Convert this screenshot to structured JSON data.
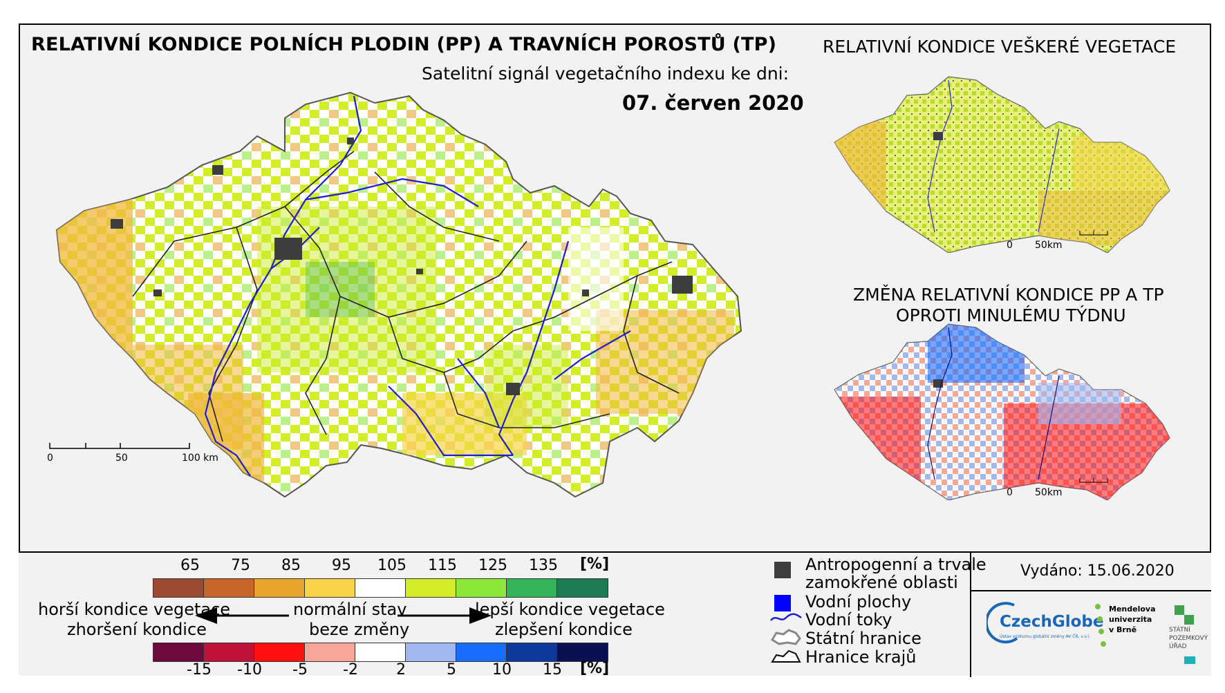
{
  "map": {
    "title": "RELATIVNÍ KONDICE POLNÍCH PLODIN (PP) A TRAVNÍCH POROSTŮ (TP)",
    "subtitle": "Satelitní signál vegetačního indexu ke dni:",
    "date": "07. červen 2020",
    "scale": {
      "ticks": [
        "0",
        "50",
        "100 km"
      ]
    }
  },
  "inset_vegetation": {
    "title": "RELATIVNÍ KONDICE VEŠKERÉ VEGETACE",
    "scale": {
      "ticks": [
        "0",
        "50km"
      ]
    }
  },
  "inset_change": {
    "title_line1": "ZMĚNA RELATIVNÍ KONDICE PP A TP",
    "title_line2": "OPROTI MINULÉMU TÝDNU",
    "scale": {
      "ticks": [
        "0",
        "50km"
      ]
    }
  },
  "legend": {
    "condition": {
      "labels": [
        "65",
        "75",
        "85",
        "95",
        "105",
        "115",
        "125",
        "135"
      ],
      "unit": "[%]",
      "colors": [
        "#9c4a32",
        "#c6662a",
        "#e8a52e",
        "#f7d44a",
        "#ffffff",
        "#d3ee29",
        "#8ee83c",
        "#36b35a",
        "#1e7a55"
      ]
    },
    "change": {
      "labels": [
        "-15",
        "-10",
        "-5",
        "-2",
        "2",
        "5",
        "10",
        "15"
      ],
      "unit": "[%]",
      "colors": [
        "#6c0a3c",
        "#c0113a",
        "#ff1010",
        "#f7a79a",
        "#ffffff",
        "#a4b8f0",
        "#1a6cff",
        "#0d3a9a",
        "#0a1050"
      ]
    },
    "left_line1": "horší kondice vegetace",
    "left_line2": "zhoršení kondice",
    "center_line1": "normální stav",
    "center_line2": "beze změny",
    "right_line1": "lepší kondice vegetace",
    "right_line2": "zlepšení kondice",
    "symbols": {
      "anthropogenic_line1": "Antropogenní a trvale",
      "anthropogenic_line2": "zamokřené oblasti",
      "water_bodies": "Vodní plochy",
      "rivers": "Vodní toky",
      "state_border": "Státní hranice",
      "regions_border": "Hranice krajů"
    },
    "issued": "Vydáno: 15.06.2020",
    "logos": {
      "czechglobe": "CzechGlobe",
      "czechglobe_sub": "Ústav výzkumu globální změny AV ČR, v.v.i.",
      "mendel_line1": "Mendelova",
      "mendel_line2": "univerzita",
      "mendel_line3": "v Brně",
      "spu_line1": "STÁTNÍ",
      "spu_line2": "POZEMKOVÝ",
      "spu_line3": "ÚŘAD"
    }
  }
}
